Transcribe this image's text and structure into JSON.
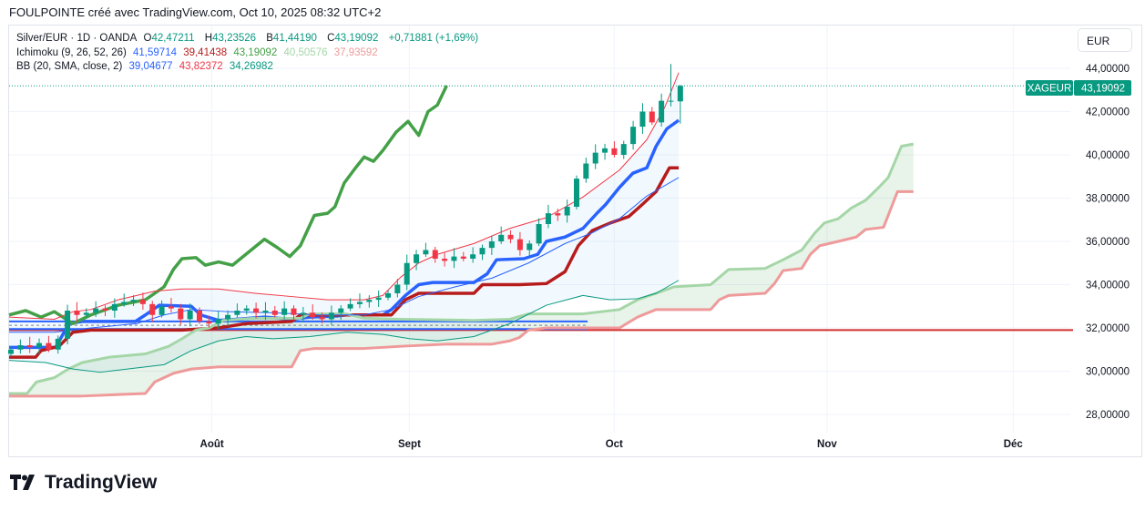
{
  "header": {
    "text": "FOULPOINTE créé avec TradingView.com, Oct 10, 2025 08:32 UTC+2"
  },
  "legend": {
    "symbol": "Silver/EUR · 1D · OANDA",
    "o_label": "O",
    "o": "42,47211",
    "h_label": "H",
    "h": "43,23526",
    "b_label": "B",
    "b": "41,44190",
    "c_label": "C",
    "c": "43,19092",
    "change": "+0,71881 (+1,69%)",
    "ichimoku_label": "Ichimoku (9, 26, 52, 26)",
    "ichi": [
      "41,59714",
      "39,41438",
      "43,19092",
      "40,50576",
      "37,93592"
    ],
    "bb_label": "BB (20, SMA, close, 2)",
    "bb": [
      "39,04677",
      "43,82372",
      "34,26982"
    ]
  },
  "currency": "EUR",
  "price_tag": {
    "symbol": "XAGEUR",
    "value": "43,19092"
  },
  "footer": {
    "brand": "TradingView"
  },
  "colors": {
    "up": "#089981",
    "down": "#f23645",
    "tenkan": "#2962ff",
    "kijun": "#b71c1c",
    "chikou": "#43a047",
    "spanA": "#a5d6a7",
    "spanB": "#ef9a9a",
    "bbUpper": "#f23645",
    "bbBasis": "#2962ff",
    "bbLower": "#089981",
    "hline": "#d32f2f"
  },
  "chart_data": {
    "type": "candlestick",
    "ylim": [
      27,
      45.5
    ],
    "yticks": [
      28,
      30,
      32,
      34,
      36,
      38,
      40,
      42,
      44
    ],
    "ytick_labels": [
      "28,00000",
      "30,00000",
      "32,00000",
      "34,00000",
      "36,00000",
      "38,00000",
      "40,00000",
      "42,00000",
      "44,00000"
    ],
    "xticks": [
      {
        "d": 30.5,
        "label": "Août"
      },
      {
        "d": 60.2,
        "label": "Sept"
      },
      {
        "d": 91,
        "label": "Oct"
      },
      {
        "d": 123,
        "label": "Nov"
      },
      {
        "d": 151,
        "label": "Déc"
      }
    ],
    "closes": [
      31.0,
      31.2,
      31.1,
      31.3,
      31.0,
      31.5,
      32.8,
      32.6,
      32.7,
      32.9,
      32.8,
      33.1,
      33.2,
      33.3,
      33.1,
      32.6,
      33.0,
      32.9,
      32.4,
      32.8,
      32.3,
      32.2,
      32.4,
      32.6,
      32.8,
      32.9,
      32.7,
      32.8,
      32.6,
      32.9,
      32.6,
      32.7,
      32.5,
      32.4,
      32.7,
      32.9,
      33.1,
      33.2,
      33.3,
      33.4,
      33.6,
      34.0,
      35.0,
      35.4,
      35.6,
      35.2,
      35.1,
      35.3,
      35.2,
      35.4,
      35.7,
      36.0,
      36.3,
      36.1,
      35.6,
      35.9,
      36.8,
      37.3,
      37.2,
      37.6,
      38.9,
      39.6,
      40.1,
      40.3,
      40.0,
      40.5,
      41.3,
      42.0,
      41.5,
      42.5,
      42.5
    ],
    "last_candle": {
      "o": 42.47211,
      "h": 43.23526,
      "l": 41.4419,
      "c": 43.19092
    },
    "series": [
      {
        "name": "Tenkan",
        "color_key": "tenkan",
        "width": 3.5,
        "points": [
          [
            0,
            31.1
          ],
          [
            4,
            31.1
          ],
          [
            7,
            31.1
          ],
          [
            9,
            32.2
          ],
          [
            11,
            32.3
          ],
          [
            15,
            32.3
          ],
          [
            19,
            32.3
          ],
          [
            20.5,
            32.6
          ],
          [
            22.6,
            33.05
          ],
          [
            27.4,
            33.0
          ],
          [
            28.8,
            32.6
          ],
          [
            31.5,
            32.35
          ],
          [
            34.2,
            32.4
          ],
          [
            38.4,
            32.5
          ],
          [
            42.5,
            32.4
          ],
          [
            45.2,
            32.5
          ],
          [
            49.3,
            32.55
          ],
          [
            50.7,
            32.6
          ],
          [
            56.2,
            32.6
          ],
          [
            57.5,
            32.85
          ],
          [
            59.6,
            33.5
          ],
          [
            61.6,
            34.0
          ],
          [
            63.7,
            34.1
          ],
          [
            69.9,
            34.1
          ],
          [
            71.9,
            34.5
          ],
          [
            73.3,
            35.15
          ],
          [
            77.4,
            35.2
          ],
          [
            79.5,
            35.4
          ],
          [
            80.8,
            36.0
          ],
          [
            83.6,
            36.2
          ],
          [
            86.3,
            36.6
          ],
          [
            88.4,
            37.3
          ],
          [
            89.7,
            37.7
          ],
          [
            91.8,
            38.5
          ],
          [
            93.8,
            39.15
          ],
          [
            95.9,
            39.4
          ],
          [
            97.3,
            40.4
          ],
          [
            98.9,
            41.2
          ],
          [
            100.7,
            41.6
          ]
        ]
      },
      {
        "name": "Kijun",
        "color_key": "kijun",
        "width": 3.5,
        "points": [
          [
            0,
            30.65
          ],
          [
            4,
            30.65
          ],
          [
            4.8,
            30.95
          ],
          [
            7.5,
            31.15
          ],
          [
            9.6,
            31.8
          ],
          [
            12.3,
            31.9
          ],
          [
            26,
            31.9
          ],
          [
            31.5,
            32.0
          ],
          [
            35.6,
            32.2
          ],
          [
            42.5,
            32.3
          ],
          [
            43.8,
            32.6
          ],
          [
            57.5,
            32.6
          ],
          [
            59.6,
            33.3
          ],
          [
            61.6,
            33.6
          ],
          [
            69.9,
            33.6
          ],
          [
            71.2,
            34.0
          ],
          [
            76.7,
            34.0
          ],
          [
            80.8,
            34.05
          ],
          [
            83.6,
            34.6
          ],
          [
            85.6,
            35.8
          ],
          [
            87.7,
            36.5
          ],
          [
            90.4,
            36.85
          ],
          [
            93.2,
            37.15
          ],
          [
            95.2,
            37.7
          ],
          [
            97.3,
            38.3
          ],
          [
            99.3,
            39.4
          ],
          [
            100.7,
            39.4
          ]
        ]
      },
      {
        "name": "Chikou",
        "color_key": "chikou",
        "width": 3.5,
        "points": [
          [
            0,
            32.6
          ],
          [
            2.5,
            32.8
          ],
          [
            4.8,
            32.5
          ],
          [
            6.8,
            32.75
          ],
          [
            9.6,
            32.2
          ],
          [
            12.3,
            32.6
          ],
          [
            16.4,
            33.05
          ],
          [
            20.5,
            33.3
          ],
          [
            23.3,
            33.9
          ],
          [
            24.7,
            34.7
          ],
          [
            26,
            35.2
          ],
          [
            28.1,
            35.25
          ],
          [
            29.5,
            34.9
          ],
          [
            31.5,
            35.05
          ],
          [
            33.6,
            34.9
          ],
          [
            35.6,
            35.4
          ],
          [
            38.4,
            36.1
          ],
          [
            40.4,
            35.7
          ],
          [
            42.2,
            35.3
          ],
          [
            43.8,
            35.8
          ],
          [
            45.9,
            37.2
          ],
          [
            47.9,
            37.3
          ],
          [
            49,
            37.6
          ],
          [
            50.4,
            38.7
          ],
          [
            52.1,
            39.4
          ],
          [
            53.4,
            39.9
          ],
          [
            54.8,
            39.7
          ],
          [
            56.2,
            40.2
          ],
          [
            58.2,
            41.05
          ],
          [
            60,
            41.55
          ],
          [
            61.6,
            40.9
          ],
          [
            63,
            42.0
          ],
          [
            64.4,
            42.3
          ],
          [
            65.8,
            43.2
          ]
        ]
      },
      {
        "name": "Senkou A",
        "color_key": "spanA",
        "width": 3,
        "points": [
          [
            0,
            28.97
          ],
          [
            2.7,
            28.97
          ],
          [
            4.1,
            29.5
          ],
          [
            6.8,
            29.7
          ],
          [
            8.9,
            30.1
          ],
          [
            11,
            30.4
          ],
          [
            15.1,
            30.65
          ],
          [
            20.5,
            30.8
          ],
          [
            24,
            31.15
          ],
          [
            26,
            31.5
          ],
          [
            28.1,
            31.9
          ],
          [
            30.1,
            32.0
          ],
          [
            32.2,
            32.35
          ],
          [
            37,
            32.45
          ],
          [
            43.8,
            32.45
          ],
          [
            45.2,
            32.65
          ],
          [
            50.7,
            32.65
          ],
          [
            53.4,
            32.45
          ],
          [
            58.9,
            32.4
          ],
          [
            69.9,
            32.35
          ],
          [
            75.3,
            32.4
          ],
          [
            78.1,
            32.65
          ],
          [
            80.8,
            32.65
          ],
          [
            86.3,
            32.65
          ],
          [
            91.8,
            32.85
          ],
          [
            94.5,
            33.3
          ],
          [
            97.3,
            33.6
          ],
          [
            100,
            33.9
          ],
          [
            105.5,
            34.0
          ],
          [
            108.2,
            34.7
          ],
          [
            113.7,
            34.75
          ],
          [
            116.4,
            35.15
          ],
          [
            119.2,
            35.6
          ],
          [
            121.2,
            36.4
          ],
          [
            122.6,
            36.85
          ],
          [
            124.7,
            37.05
          ],
          [
            126.7,
            37.55
          ],
          [
            128.8,
            37.9
          ],
          [
            130.8,
            38.5
          ],
          [
            132.2,
            38.95
          ],
          [
            134.2,
            40.4
          ],
          [
            136,
            40.5
          ]
        ]
      },
      {
        "name": "Senkou B",
        "color_key": "spanB",
        "width": 3,
        "points": [
          [
            0,
            28.85
          ],
          [
            11,
            28.85
          ],
          [
            20.5,
            28.97
          ],
          [
            21.9,
            29.5
          ],
          [
            24.7,
            29.9
          ],
          [
            27.4,
            30.1
          ],
          [
            31.5,
            30.2
          ],
          [
            42.5,
            30.2
          ],
          [
            43.8,
            30.95
          ],
          [
            45.9,
            31.05
          ],
          [
            53.4,
            31.05
          ],
          [
            58.9,
            31.15
          ],
          [
            65.8,
            31.25
          ],
          [
            72.6,
            31.25
          ],
          [
            75.3,
            31.4
          ],
          [
            76.7,
            31.55
          ],
          [
            78.1,
            31.9
          ],
          [
            80.8,
            32.0
          ],
          [
            91.8,
            32.0
          ],
          [
            94.5,
            32.5
          ],
          [
            97.3,
            32.85
          ],
          [
            105.5,
            32.85
          ],
          [
            106.8,
            33.3
          ],
          [
            108.2,
            33.5
          ],
          [
            113.7,
            33.6
          ],
          [
            115.1,
            34.05
          ],
          [
            116.4,
            34.65
          ],
          [
            119.2,
            34.75
          ],
          [
            120.5,
            35.4
          ],
          [
            121.9,
            35.8
          ],
          [
            124.7,
            36.0
          ],
          [
            127.4,
            36.2
          ],
          [
            128.8,
            36.55
          ],
          [
            131.5,
            36.65
          ],
          [
            133.6,
            38.3
          ],
          [
            136,
            38.3
          ]
        ]
      },
      {
        "name": "BB Upper",
        "color_key": "bbUpper",
        "width": 1,
        "points": [
          [
            0,
            32.5
          ],
          [
            6.8,
            32.4
          ],
          [
            9.6,
            32.75
          ],
          [
            12.3,
            32.85
          ],
          [
            16.4,
            33.3
          ],
          [
            19.2,
            33.5
          ],
          [
            21.9,
            33.7
          ],
          [
            26,
            33.8
          ],
          [
            31.5,
            33.8
          ],
          [
            37,
            33.6
          ],
          [
            42.5,
            33.45
          ],
          [
            47.9,
            33.3
          ],
          [
            53.4,
            33.3
          ],
          [
            56.2,
            33.5
          ],
          [
            58.9,
            34.35
          ],
          [
            61.6,
            35.0
          ],
          [
            64.4,
            35.4
          ],
          [
            69.9,
            35.9
          ],
          [
            75.3,
            36.6
          ],
          [
            80.8,
            37.1
          ],
          [
            86.3,
            38.05
          ],
          [
            91.8,
            39.3
          ],
          [
            95.9,
            40.7
          ],
          [
            98.6,
            42.2
          ],
          [
            100.7,
            43.8
          ]
        ]
      },
      {
        "name": "BB Basis",
        "color_key": "bbBasis",
        "width": 1,
        "points": [
          [
            0,
            31.8
          ],
          [
            6.8,
            31.8
          ],
          [
            12.3,
            32.0
          ],
          [
            19.2,
            32.2
          ],
          [
            23.3,
            32.6
          ],
          [
            27.4,
            32.85
          ],
          [
            32.9,
            32.75
          ],
          [
            39.7,
            32.7
          ],
          [
            46.6,
            32.6
          ],
          [
            53.4,
            32.6
          ],
          [
            57.5,
            32.85
          ],
          [
            61.6,
            33.45
          ],
          [
            67.1,
            33.9
          ],
          [
            72.6,
            34.3
          ],
          [
            78.1,
            35.0
          ],
          [
            83.6,
            35.9
          ],
          [
            87.7,
            36.4
          ],
          [
            91.8,
            37.05
          ],
          [
            95.9,
            38.1
          ],
          [
            100.7,
            38.95
          ]
        ]
      },
      {
        "name": "BB Lower",
        "color_key": "bbLower",
        "width": 1,
        "points": [
          [
            0,
            30.5
          ],
          [
            5.5,
            30.4
          ],
          [
            9.6,
            30.1
          ],
          [
            13.7,
            29.95
          ],
          [
            17.8,
            30.1
          ],
          [
            23.3,
            30.3
          ],
          [
            27.4,
            30.95
          ],
          [
            31.5,
            31.4
          ],
          [
            35.6,
            31.6
          ],
          [
            39.7,
            31.5
          ],
          [
            45.2,
            31.6
          ],
          [
            50.7,
            31.8
          ],
          [
            56.2,
            31.7
          ],
          [
            60.3,
            31.5
          ],
          [
            64.4,
            31.4
          ],
          [
            69.9,
            31.6
          ],
          [
            75.3,
            32.2
          ],
          [
            80.8,
            33.05
          ],
          [
            86.3,
            33.5
          ],
          [
            90.4,
            33.3
          ],
          [
            94.5,
            33.35
          ],
          [
            97.3,
            33.6
          ],
          [
            100.7,
            34.2
          ]
        ]
      }
    ],
    "hlines": [
      {
        "value": 31.9,
        "color_key": "hline",
        "from": 0,
        "to": 160,
        "width": 2
      },
      {
        "value": 32.3,
        "color_key": "tenkan",
        "from": 0,
        "to": 87,
        "width": 2
      },
      {
        "value": 31.95,
        "color_key": "tenkan",
        "from": 0,
        "to": 87,
        "width": 2
      }
    ],
    "current_price": 43.19092
  }
}
